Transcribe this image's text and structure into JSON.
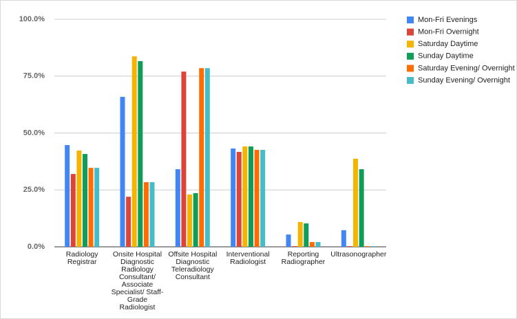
{
  "chart_data": {
    "type": "bar",
    "categories": [
      "Radiology Registrar",
      "Onsite Hospital Diagnostic Radiology Consultant/ Associate Specialist/ Staff-Grade Radiologist",
      "Offsite Hospital Diagnostic Teleradiology Consultant",
      "Interventional Radiologist",
      "Reporting Radiographer",
      "Ultrasonographer"
    ],
    "series": [
      {
        "name": "Mon-Fri Evenings",
        "color": "#4285f4",
        "values": [
          44.7,
          65.9,
          34.1,
          43.2,
          5.4,
          7.3
        ]
      },
      {
        "name": "Mon-Fri Overnight",
        "color": "#db4437",
        "values": [
          32,
          22,
          77,
          41.7,
          0.3,
          0.3
        ]
      },
      {
        "name": "Saturday Daytime",
        "color": "#f4b400",
        "values": [
          42.3,
          83.7,
          23,
          44.1,
          10.9,
          38.7
        ]
      },
      {
        "name": "Sunday Daytime",
        "color": "#0f9d58",
        "values": [
          40.8,
          81.6,
          23.6,
          44.1,
          10.3,
          34.1
        ]
      },
      {
        "name": "Saturday Evening/ Overnight",
        "color": "#ff6d01",
        "values": [
          34.7,
          28.4,
          78.5,
          42.6,
          2.1,
          0.3
        ]
      },
      {
        "name": "Sunday Evening/ Overnight",
        "color": "#46bdc6",
        "values": [
          34.7,
          28.4,
          78.5,
          42.6,
          2.1,
          0.3
        ]
      }
    ],
    "ylim": [
      0,
      100
    ],
    "yticks": [
      {
        "value": 0,
        "label": "0.0%"
      },
      {
        "value": 25,
        "label": "25.0%"
      },
      {
        "value": 50,
        "label": "50.0%"
      },
      {
        "value": 75,
        "label": "75.0%"
      },
      {
        "value": 100,
        "label": "100.0%"
      }
    ],
    "grid": true,
    "legend": "right"
  }
}
